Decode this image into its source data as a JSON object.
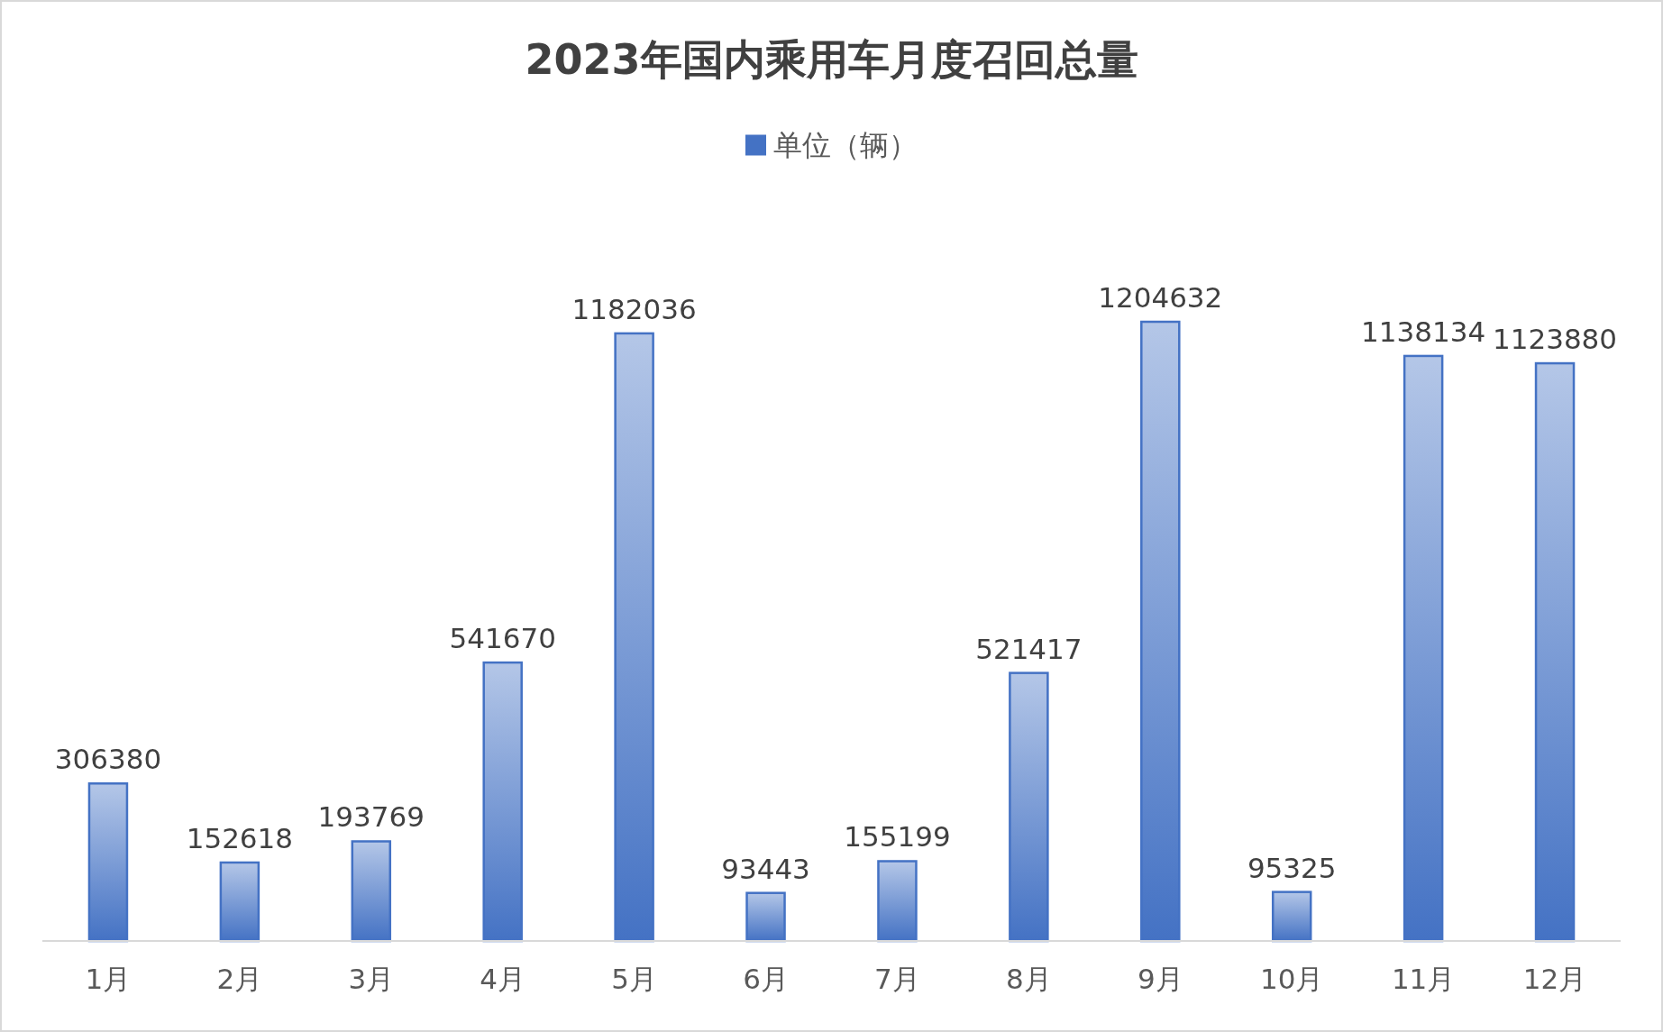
{
  "chart_data": {
    "type": "bar",
    "title": "2023年国内乘用车月度召回总量",
    "categories": [
      "1月",
      "2月",
      "3月",
      "4月",
      "5月",
      "6月",
      "7月",
      "8月",
      "9月",
      "10月",
      "11月",
      "12月"
    ],
    "series": [
      {
        "name": "单位（辆）",
        "color": "#4472c4",
        "values": [
          306380,
          152618,
          193769,
          541670,
          1182036,
          93443,
          155199,
          521417,
          1204632,
          95325,
          1138134,
          1123880
        ]
      }
    ],
    "data_labels": true,
    "legend": "top"
  }
}
